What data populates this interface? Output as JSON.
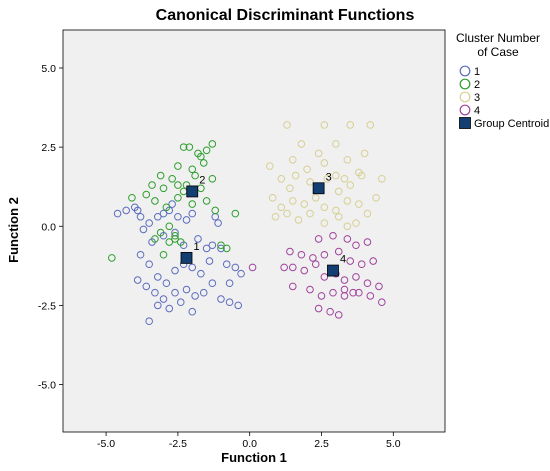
{
  "chart_data": {
    "type": "scatter",
    "title": "Canonical Discriminant Functions",
    "xlabel": "Function 1",
    "ylabel": "Function 2",
    "xlim": [
      -6.5,
      6.8
    ],
    "ylim": [
      -6.5,
      6.2
    ],
    "x_ticks": [
      "-5.0",
      "-2.5",
      "0.0",
      "2.5",
      "5.0"
    ],
    "y_ticks": [
      "5.0",
      "2.5",
      "0.0",
      "-2.5",
      "-5.0"
    ],
    "grid": false,
    "legend": {
      "title_line1": "Cluster Number",
      "title_line2": "of Case",
      "placement": "right",
      "centroid_label": "Group Centroid"
    },
    "series": [
      {
        "name": "1",
        "color": "#5b6cbf",
        "points": [
          [
            -4.6,
            0.4
          ],
          [
            -4.3,
            0.5
          ],
          [
            -4.0,
            0.6
          ],
          [
            -3.9,
            0.5
          ],
          [
            -3.8,
            0.3
          ],
          [
            -3.5,
            0.1
          ],
          [
            -3.2,
            0.3
          ],
          [
            -3.0,
            0.4
          ],
          [
            -2.8,
            0.5
          ],
          [
            -2.5,
            0.3
          ],
          [
            -2.2,
            0.2
          ],
          [
            -2.0,
            0.4
          ],
          [
            -1.2,
            0.3
          ],
          [
            -1.1,
            0.1
          ],
          [
            -3.7,
            -0.1
          ],
          [
            -3.4,
            -0.5
          ],
          [
            -3.0,
            -0.3
          ],
          [
            -2.6,
            -0.2
          ],
          [
            -2.3,
            -0.6
          ],
          [
            -1.8,
            -0.4
          ],
          [
            -1.5,
            -0.7
          ],
          [
            -1.3,
            -0.6
          ],
          [
            -3.8,
            -0.9
          ],
          [
            -3.5,
            -1.2
          ],
          [
            -3.2,
            -1.6
          ],
          [
            -2.9,
            -1.8
          ],
          [
            -2.6,
            -1.4
          ],
          [
            -2.3,
            -1.2
          ],
          [
            -2.0,
            -1.3
          ],
          [
            -1.7,
            -1.5
          ],
          [
            -1.4,
            -1.1
          ],
          [
            -0.8,
            -1.2
          ],
          [
            -0.5,
            -1.3
          ],
          [
            -0.3,
            -1.5
          ],
          [
            -3.9,
            -1.7
          ],
          [
            -3.6,
            -1.9
          ],
          [
            -3.3,
            -2.1
          ],
          [
            -3.0,
            -2.3
          ],
          [
            -2.6,
            -2.1
          ],
          [
            -2.2,
            -2.0
          ],
          [
            -1.9,
            -2.2
          ],
          [
            -1.6,
            -2.1
          ],
          [
            -1.3,
            -1.8
          ],
          [
            -1.0,
            -2.3
          ],
          [
            -0.7,
            -2.4
          ],
          [
            -0.4,
            -2.5
          ],
          [
            -3.2,
            -2.5
          ],
          [
            -2.8,
            -2.6
          ],
          [
            -2.4,
            -2.4
          ],
          [
            -3.5,
            -3.0
          ],
          [
            -2.0,
            -2.7
          ],
          [
            -0.7,
            -1.8
          ],
          [
            -1.0,
            -0.7
          ],
          [
            -2.7,
            0.7
          ]
        ]
      },
      {
        "name": "2",
        "color": "#2e9e2e",
        "points": [
          [
            -2.3,
            2.5
          ],
          [
            -2.1,
            2.5
          ],
          [
            -1.8,
            2.3
          ],
          [
            -1.5,
            2.4
          ],
          [
            -1.3,
            2.6
          ],
          [
            -1.6,
            2.0
          ],
          [
            -2.0,
            1.8
          ],
          [
            -2.5,
            1.9
          ],
          [
            -2.7,
            1.5
          ],
          [
            -3.1,
            1.6
          ],
          [
            -3.4,
            1.3
          ],
          [
            -3.0,
            1.2
          ],
          [
            -2.2,
            1.3
          ],
          [
            -1.7,
            1.2
          ],
          [
            -1.3,
            1.5
          ],
          [
            -1.5,
            0.8
          ],
          [
            -1.2,
            0.5
          ],
          [
            -0.5,
            0.4
          ],
          [
            -3.6,
            1.0
          ],
          [
            -3.3,
            0.8
          ],
          [
            -2.9,
            0.6
          ],
          [
            -2.5,
            0.9
          ],
          [
            -2.0,
            0.7
          ],
          [
            -2.8,
            0.0
          ],
          [
            -2.6,
            -0.3
          ],
          [
            -2.4,
            -0.5
          ],
          [
            -2.6,
            -0.4
          ],
          [
            -2.8,
            -0.5
          ],
          [
            -3.1,
            -0.2
          ],
          [
            -3.3,
            -0.4
          ],
          [
            -1.0,
            -0.6
          ],
          [
            -0.8,
            -0.7
          ],
          [
            -3.0,
            -0.9
          ],
          [
            -4.8,
            -1.0
          ],
          [
            -4.1,
            0.9
          ],
          [
            -1.7,
            2.2
          ],
          [
            -1.9,
            1.6
          ],
          [
            -2.3,
            1.1
          ],
          [
            -2.5,
            1.3
          ]
        ]
      },
      {
        "name": "3",
        "color": "#d6d093",
        "points": [
          [
            1.3,
            3.2
          ],
          [
            2.6,
            3.2
          ],
          [
            3.0,
            2.6
          ],
          [
            3.5,
            3.2
          ],
          [
            4.2,
            3.2
          ],
          [
            1.8,
            2.6
          ],
          [
            2.4,
            2.3
          ],
          [
            3.4,
            2.1
          ],
          [
            4.0,
            2.3
          ],
          [
            1.5,
            2.1
          ],
          [
            2.0,
            1.8
          ],
          [
            2.6,
            2.0
          ],
          [
            3.0,
            1.6
          ],
          [
            3.3,
            1.5
          ],
          [
            3.8,
            1.7
          ],
          [
            0.7,
            1.9
          ],
          [
            1.1,
            1.5
          ],
          [
            1.4,
            1.2
          ],
          [
            2.1,
            1.4
          ],
          [
            2.7,
            1.5
          ],
          [
            3.1,
            1.1
          ],
          [
            3.5,
            1.3
          ],
          [
            3.9,
            1.6
          ],
          [
            0.8,
            0.9
          ],
          [
            1.1,
            0.6
          ],
          [
            1.5,
            0.8
          ],
          [
            1.9,
            0.7
          ],
          [
            2.3,
            0.9
          ],
          [
            2.6,
            0.6
          ],
          [
            3.0,
            0.5
          ],
          [
            3.4,
            0.8
          ],
          [
            3.8,
            0.7
          ],
          [
            0.9,
            0.3
          ],
          [
            1.3,
            0.4
          ],
          [
            1.7,
            0.2
          ],
          [
            2.1,
            0.4
          ],
          [
            2.6,
            0.1
          ],
          [
            3.1,
            0.3
          ],
          [
            3.4,
            0.0
          ],
          [
            3.7,
            0.1
          ],
          [
            4.1,
            0.4
          ],
          [
            4.4,
            0.9
          ],
          [
            4.6,
            1.5
          ],
          [
            1.6,
            1.6
          ]
        ]
      },
      {
        "name": "4",
        "color": "#a0429c",
        "points": [
          [
            2.4,
            -0.4
          ],
          [
            2.9,
            -0.3
          ],
          [
            3.4,
            -0.4
          ],
          [
            3.7,
            -0.6
          ],
          [
            4.1,
            -0.5
          ],
          [
            1.4,
            -0.8
          ],
          [
            1.8,
            -0.9
          ],
          [
            2.2,
            -1.0
          ],
          [
            2.6,
            -0.9
          ],
          [
            3.1,
            -0.8
          ],
          [
            3.5,
            -1.1
          ],
          [
            3.9,
            -1.2
          ],
          [
            4.3,
            -1.1
          ],
          [
            1.2,
            -1.3
          ],
          [
            1.5,
            -1.3
          ],
          [
            1.9,
            -1.4
          ],
          [
            2.3,
            -1.2
          ],
          [
            2.6,
            -1.6
          ],
          [
            3.0,
            -1.5
          ],
          [
            3.3,
            -1.7
          ],
          [
            3.7,
            -1.6
          ],
          [
            4.1,
            -1.8
          ],
          [
            4.5,
            -1.9
          ],
          [
            1.5,
            -1.9
          ],
          [
            2.1,
            -2.0
          ],
          [
            2.5,
            -2.2
          ],
          [
            2.9,
            -2.1
          ],
          [
            3.3,
            -2.2
          ],
          [
            3.6,
            -2.1
          ],
          [
            3.8,
            -2.1
          ],
          [
            4.2,
            -2.2
          ],
          [
            4.6,
            -2.4
          ],
          [
            2.4,
            -2.6
          ],
          [
            2.8,
            -2.7
          ],
          [
            3.1,
            -2.8
          ],
          [
            0.1,
            -1.3
          ],
          [
            3.3,
            -2.0
          ]
        ]
      }
    ],
    "centroids": [
      {
        "label": "1",
        "x": -2.2,
        "y": -1.0
      },
      {
        "label": "2",
        "x": -2.0,
        "y": 1.1
      },
      {
        "label": "3",
        "x": 2.4,
        "y": 1.2
      },
      {
        "label": "4",
        "x": 2.9,
        "y": -1.4
      }
    ],
    "centroid_color": "#123e72"
  }
}
